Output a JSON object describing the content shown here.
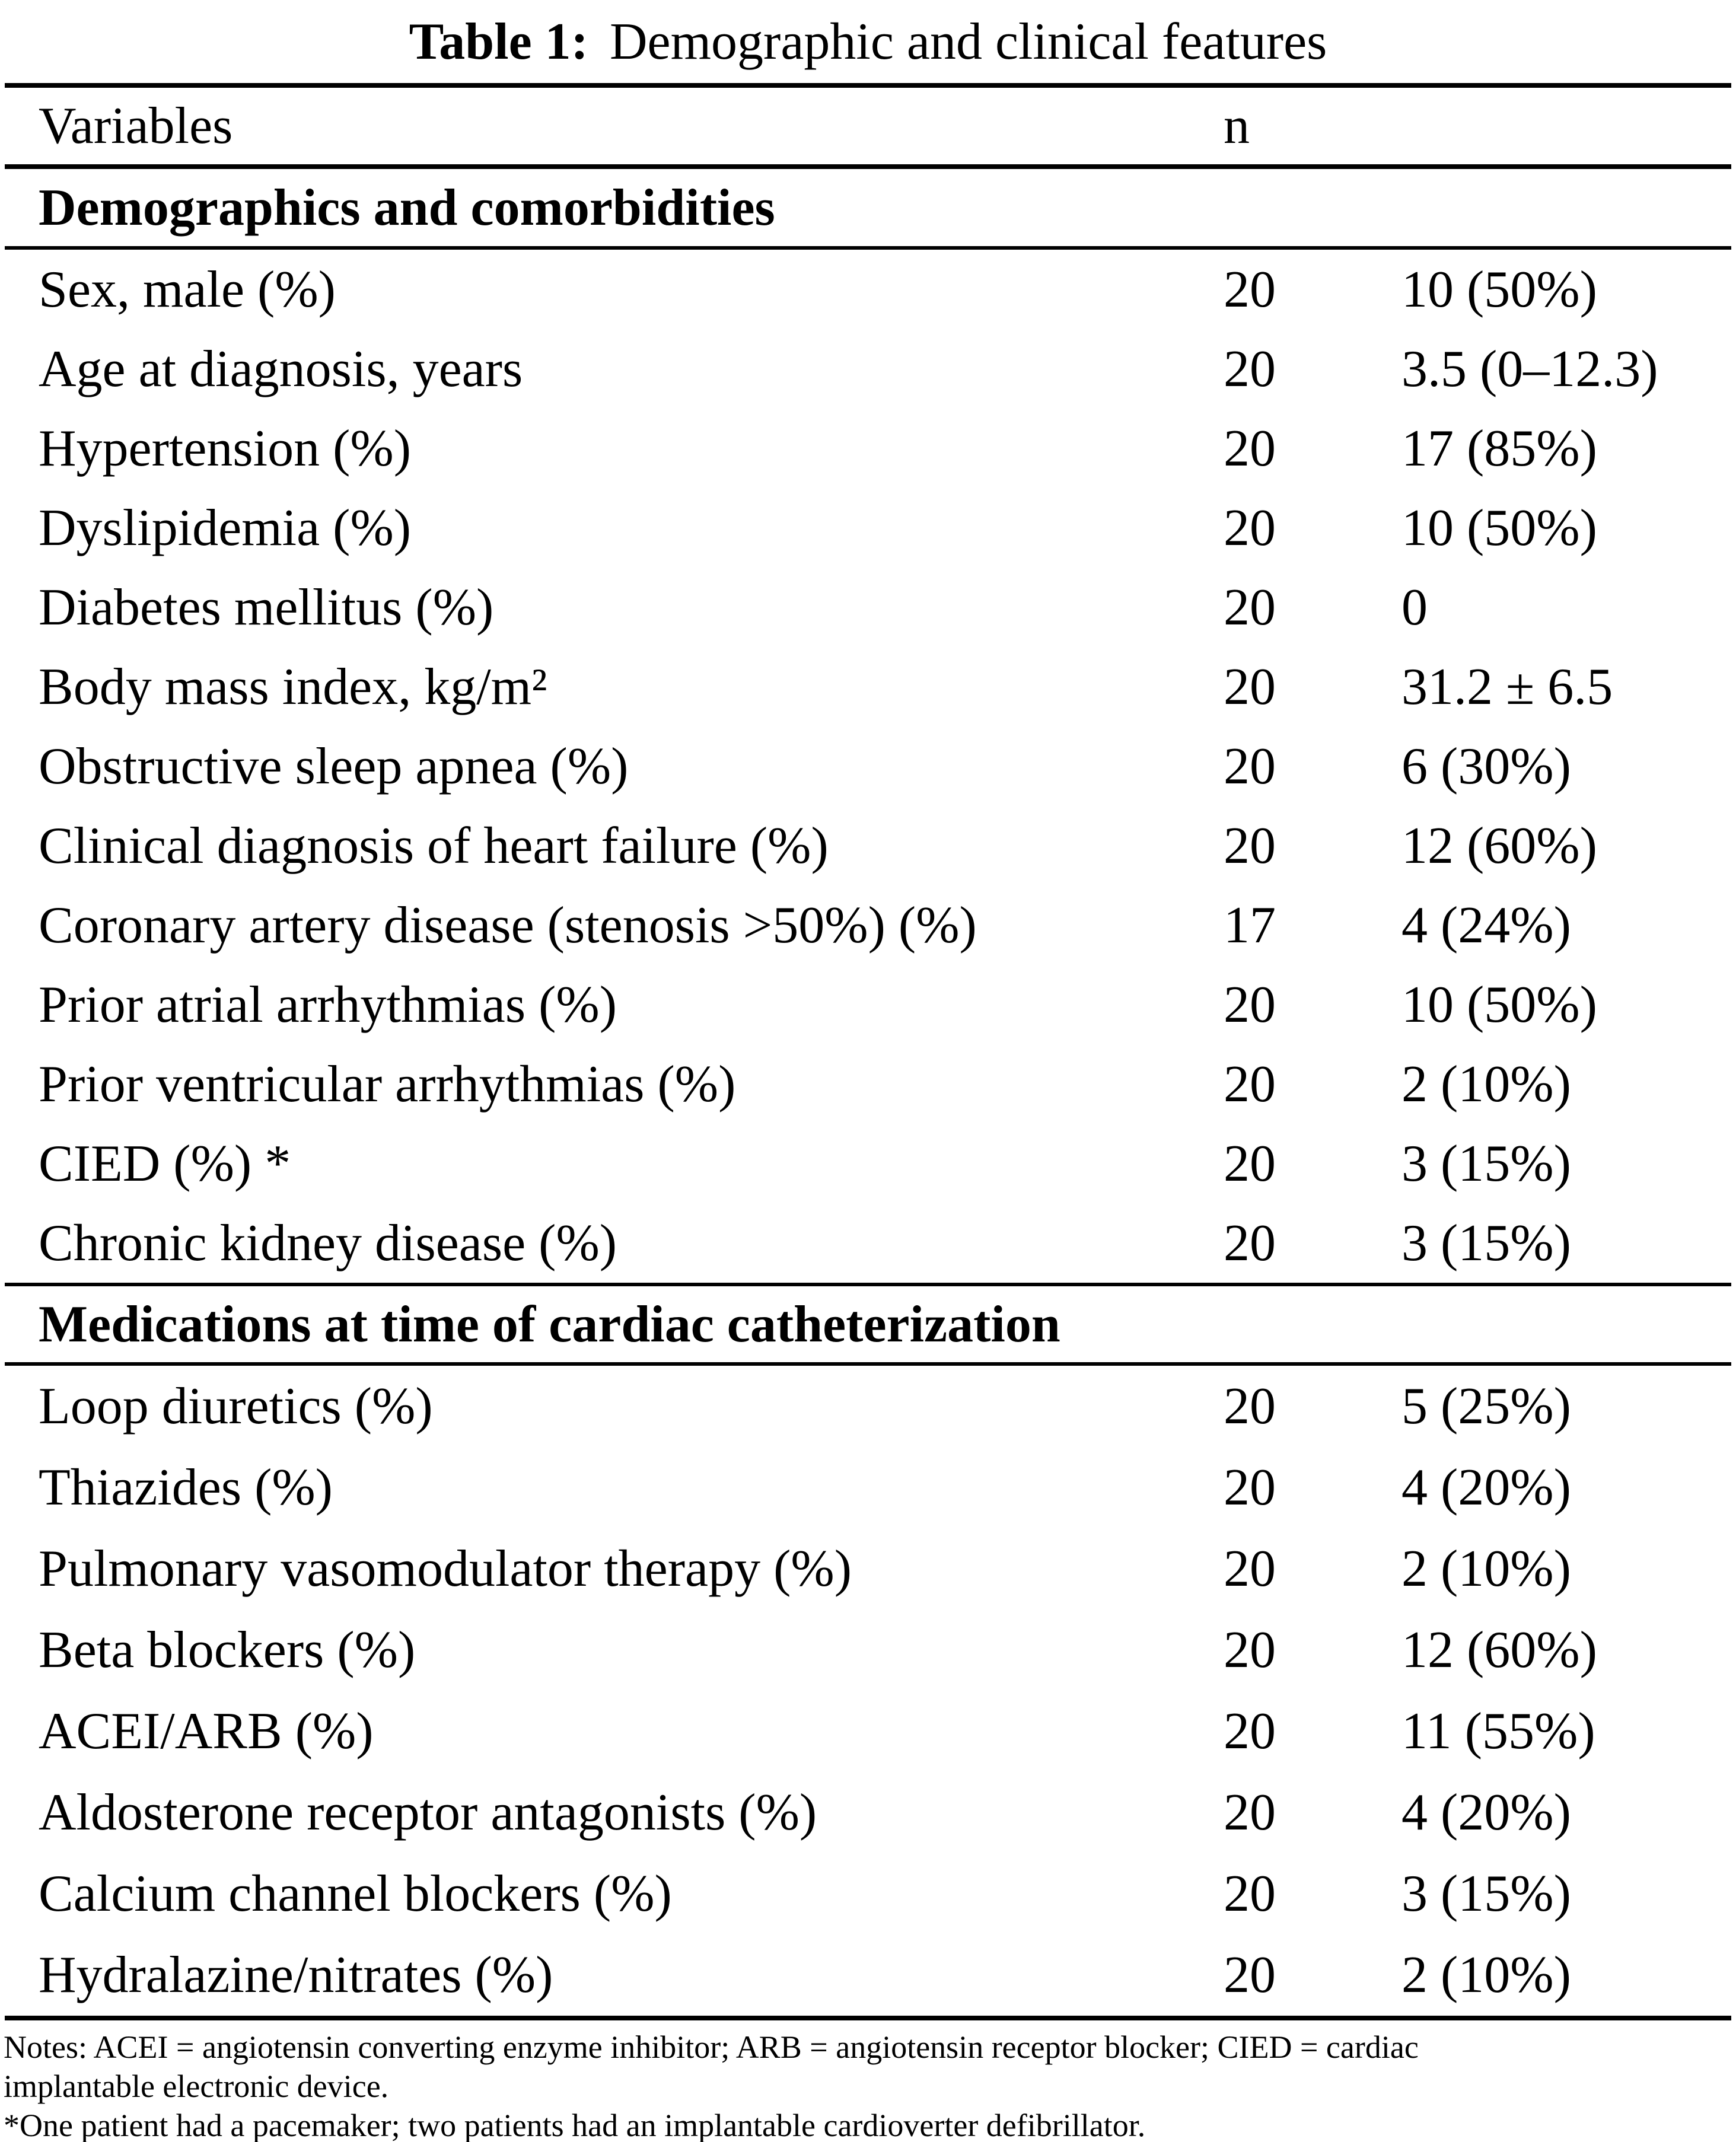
{
  "colors": {
    "background": "#ffffff",
    "text": "#000000",
    "rule": "#000000"
  },
  "title": {
    "label": "Table 1:",
    "text": "Demographic and clinical features"
  },
  "header": {
    "variables": "Variables",
    "n": "n",
    "value": ""
  },
  "sections": [
    {
      "header": "Demographics and comorbidities",
      "rows": [
        {
          "label": "Sex, male (%)",
          "n": "20",
          "value": "10 (50%)"
        },
        {
          "label": "Age at diagnosis, years",
          "n": "20",
          "value": "3.5 (0–12.3)"
        },
        {
          "label": "Hypertension (%)",
          "n": "20",
          "value": "17 (85%)"
        },
        {
          "label": "Dyslipidemia (%)",
          "n": "20",
          "value": "10 (50%)"
        },
        {
          "label": "Diabetes mellitus (%)",
          "n": "20",
          "value": "0"
        },
        {
          "label": "Body mass index, kg/m²",
          "n": "20",
          "value": "31.2 ± 6.5"
        },
        {
          "label": "Obstructive sleep apnea (%)",
          "n": "20",
          "value": "6 (30%)"
        },
        {
          "label": "Clinical diagnosis of heart failure (%)",
          "n": "20",
          "value": "12 (60%)"
        },
        {
          "label": "Coronary artery disease (stenosis >50%) (%)",
          "n": "17",
          "value": "4 (24%)"
        },
        {
          "label": "Prior atrial arrhythmias (%)",
          "n": "20",
          "value": "10 (50%)"
        },
        {
          "label": "Prior ventricular arrhythmias (%)",
          "n": "20",
          "value": "2 (10%)"
        },
        {
          "label": "CIED (%) *",
          "n": "20",
          "value": "3 (15%)"
        },
        {
          "label": "Chronic kidney disease (%)",
          "n": "20",
          "value": "3 (15%)"
        }
      ]
    },
    {
      "header": "Medications at time of cardiac catheterization",
      "rows": [
        {
          "label": "Loop diuretics (%)",
          "n": "20",
          "value": "5 (25%)"
        },
        {
          "label": "Thiazides (%)",
          "n": "20",
          "value": "4 (20%)"
        },
        {
          "label": "Pulmonary vasomodulator therapy (%)",
          "n": "20",
          "value": "2 (10%)"
        },
        {
          "label": "Beta blockers (%)",
          "n": "20",
          "value": "12 (60%)"
        },
        {
          "label": "ACEI/ARB (%)",
          "n": "20",
          "value": "11 (55%)"
        },
        {
          "label": "Aldosterone receptor antagonists (%)",
          "n": "20",
          "value": "4 (20%)"
        },
        {
          "label": "Calcium channel blockers (%)",
          "n": "20",
          "value": "3 (15%)"
        },
        {
          "label": "Hydralazine/nitrates (%)",
          "n": "20",
          "value": "2 (10%)"
        }
      ]
    }
  ],
  "notes": {
    "lines": [
      "Notes: ACEI = angiotensin converting enzyme inhibitor; ARB = angiotensin receptor blocker; CIED = cardiac",
      "implantable electronic device.",
      "*One patient had a pacemaker; two patients had an implantable cardioverter defibrillator."
    ]
  }
}
